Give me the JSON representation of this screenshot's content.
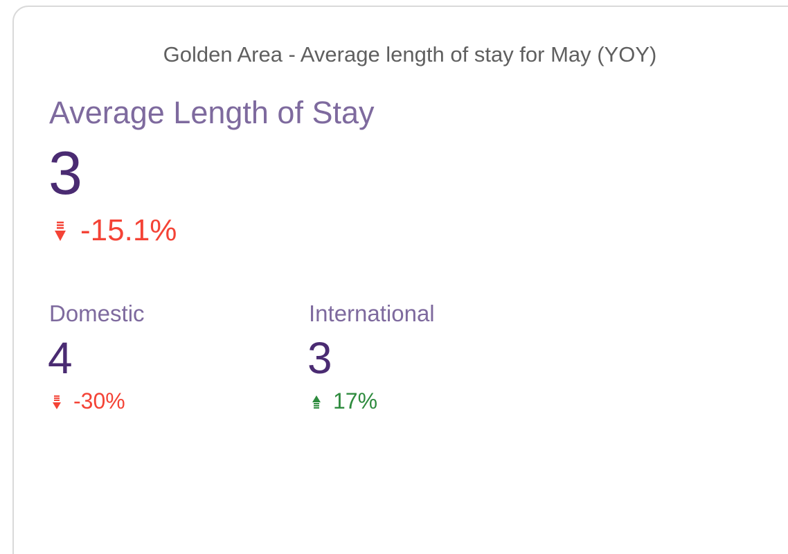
{
  "card": {
    "title": "Golden Area - Average length of stay for May (YOY)",
    "main": {
      "label": "Average Length of Stay",
      "value": "3",
      "change": "-15.1%"
    },
    "breakdown": [
      {
        "label": "Domestic",
        "value": "4",
        "change": "-30%"
      },
      {
        "label": "International",
        "value": "3",
        "change": "17%"
      }
    ]
  }
}
